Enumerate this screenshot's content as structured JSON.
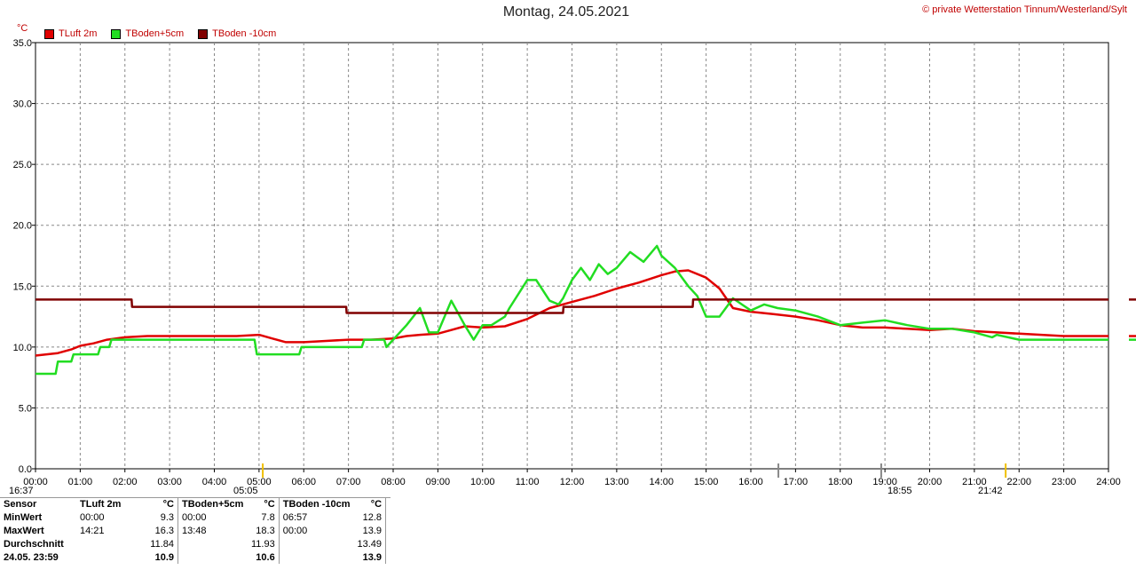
{
  "title": "Montag, 24.05.2021",
  "copyright": "© private Wetterstation Tinnum/Westerland/Sylt",
  "unit": "°C",
  "legend": [
    {
      "label": "TLuft 2m",
      "color": "#e00000"
    },
    {
      "label": "TBoden+5cm",
      "color": "#22dd22"
    },
    {
      "label": "TBoden -10cm",
      "color": "#800000"
    }
  ],
  "sun": {
    "sunrise": "05:05",
    "sunset": "21:42",
    "prev_time": "16:37",
    "marker_time": "18:55"
  },
  "chart_data": {
    "type": "line",
    "ylim": [
      0,
      35
    ],
    "xlim": [
      0,
      24
    ],
    "yticks": [
      "0.0",
      "5.0",
      "10.0",
      "15.0",
      "20.0",
      "25.0",
      "30.0",
      "35.0"
    ],
    "xticks": [
      "00:00",
      "01:00",
      "02:00",
      "03:00",
      "04:00",
      "05:00",
      "06:00",
      "07:00",
      "08:00",
      "09:00",
      "10:00",
      "11:00",
      "12:00",
      "13:00",
      "14:00",
      "15:00",
      "16:00",
      "17:00",
      "18:00",
      "19:00",
      "20:00",
      "21:00",
      "22:00",
      "23:00",
      "24:00"
    ],
    "grid": true,
    "series": [
      {
        "name": "TLuft 2m",
        "color": "#e00000",
        "x": [
          0,
          0.5,
          0.8,
          1.0,
          1.3,
          1.6,
          2.0,
          2.5,
          3.0,
          3.5,
          4.0,
          4.5,
          5.0,
          5.3,
          5.6,
          6.0,
          6.5,
          7.0,
          7.5,
          8.0,
          8.3,
          8.6,
          9.0,
          9.3,
          9.6,
          10.0,
          10.5,
          11.0,
          11.5,
          12.0,
          12.5,
          13.0,
          13.5,
          14.0,
          14.3,
          14.6,
          15.0,
          15.3,
          15.6,
          16.0,
          16.5,
          17.0,
          17.5,
          18.0,
          18.5,
          19.0,
          19.5,
          20.0,
          20.5,
          21.0,
          21.5,
          22.0,
          22.5,
          23.0,
          23.5,
          24.0
        ],
        "y": [
          9.3,
          9.5,
          9.8,
          10.1,
          10.3,
          10.6,
          10.8,
          10.9,
          10.9,
          10.9,
          10.9,
          10.9,
          11.0,
          10.7,
          10.4,
          10.4,
          10.5,
          10.6,
          10.6,
          10.7,
          10.9,
          11.0,
          11.1,
          11.4,
          11.7,
          11.6,
          11.7,
          12.3,
          13.2,
          13.7,
          14.2,
          14.8,
          15.3,
          15.9,
          16.2,
          16.3,
          15.7,
          14.8,
          13.2,
          12.9,
          12.7,
          12.5,
          12.2,
          11.8,
          11.6,
          11.6,
          11.5,
          11.4,
          11.5,
          11.3,
          11.2,
          11.1,
          11.0,
          10.9,
          10.9,
          10.9
        ]
      },
      {
        "name": "TBoden+5cm",
        "color": "#22dd22",
        "x": [
          0,
          0.45,
          0.5,
          0.8,
          0.85,
          1.4,
          1.45,
          1.65,
          1.7,
          4.9,
          4.95,
          5.9,
          5.95,
          7.3,
          7.35,
          7.8,
          7.85,
          8.0,
          8.3,
          8.6,
          8.8,
          9.0,
          9.3,
          9.6,
          9.8,
          10.0,
          10.2,
          10.5,
          10.6,
          11.0,
          11.2,
          11.5,
          11.7,
          11.8,
          12.0,
          12.2,
          12.4,
          12.6,
          12.8,
          13.0,
          13.3,
          13.6,
          13.9,
          14.0,
          14.3,
          14.5,
          14.6,
          14.8,
          15.0,
          15.3,
          15.6,
          15.8,
          16.0,
          16.3,
          16.6,
          17.0,
          17.5,
          18.0,
          18.5,
          19.0,
          19.5,
          20.0,
          20.5,
          21.0,
          21.4,
          21.5,
          22.0,
          22.5,
          23.0,
          24.0
        ],
        "y": [
          7.8,
          7.8,
          8.8,
          8.8,
          9.4,
          9.4,
          10.0,
          10.0,
          10.6,
          10.6,
          9.4,
          9.4,
          10.0,
          10.0,
          10.6,
          10.6,
          10.0,
          10.6,
          11.8,
          13.2,
          11.2,
          11.2,
          13.8,
          11.8,
          10.6,
          11.8,
          11.8,
          12.5,
          13.2,
          15.5,
          15.5,
          13.8,
          13.5,
          14.0,
          15.5,
          16.5,
          15.5,
          16.8,
          16.0,
          16.5,
          17.8,
          17.0,
          18.3,
          17.5,
          16.5,
          15.5,
          15.0,
          14.2,
          12.5,
          12.5,
          14.0,
          13.5,
          13.0,
          13.5,
          13.2,
          13.0,
          12.5,
          11.8,
          12.0,
          12.2,
          11.8,
          11.5,
          11.5,
          11.2,
          10.8,
          11.0,
          10.6,
          10.6,
          10.6,
          10.6
        ]
      },
      {
        "name": "TBoden -10cm",
        "color": "#800000",
        "x": [
          0,
          2.15,
          2.16,
          6.95,
          6.96,
          11.8,
          11.81,
          14.7,
          14.71,
          24
        ],
        "y": [
          13.9,
          13.9,
          13.3,
          13.3,
          12.8,
          12.8,
          13.3,
          13.3,
          13.9,
          13.9
        ]
      }
    ]
  },
  "stats": {
    "headers": [
      "Sensor",
      "TLuft 2m",
      "°C",
      "TBoden+5cm",
      "°C",
      "TBoden -10cm",
      "°C"
    ],
    "rows": [
      {
        "label": "MinWert",
        "c1t": "00:00",
        "c1v": "9.3",
        "c2t": "00:00",
        "c2v": "7.8",
        "c3t": "06:57",
        "c3v": "12.8"
      },
      {
        "label": "MaxWert",
        "c1t": "14:21",
        "c1v": "16.3",
        "c2t": "13:48",
        "c2v": "18.3",
        "c3t": "00:00",
        "c3v": "13.9"
      },
      {
        "label": "Durchschnitt",
        "c1t": "",
        "c1v": "11.84",
        "c2t": "",
        "c2v": "11.93",
        "c3t": "",
        "c3v": "13.49"
      },
      {
        "label": "24.05. 23:59",
        "c1t": "",
        "c1v": "10.9",
        "c2t": "",
        "c2v": "10.6",
        "c3t": "",
        "c3v": "13.9"
      }
    ]
  }
}
